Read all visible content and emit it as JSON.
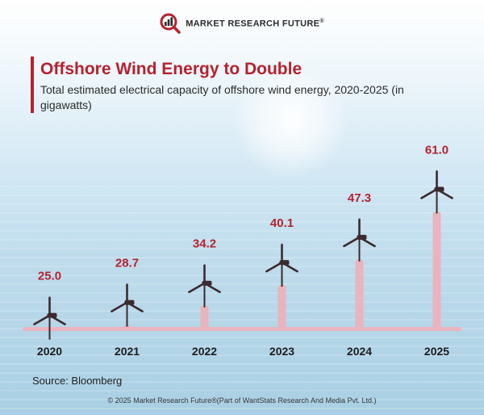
{
  "brand": {
    "name": "MARKET RESEARCH FUTURE",
    "reg": "®"
  },
  "chart_data": {
    "type": "bar",
    "title": "Offshore Wind Energy to Double",
    "subtitle": "Total estimated electrical capacity of offshore wind  energy, 2020-2025 (in gigawatts)",
    "categories": [
      "2020",
      "2021",
      "2022",
      "2023",
      "2024",
      "2025"
    ],
    "values": [
      25.0,
      28.7,
      34.2,
      40.1,
      47.3,
      61.0
    ],
    "value_labels": [
      "25.0",
      "28.7",
      "34.2",
      "40.1",
      "47.3",
      "61.0"
    ],
    "ylabel": "gigawatts",
    "ylim": [
      0,
      65
    ],
    "colors": {
      "bar": "#e9b4bd",
      "value_label": "#b5222e",
      "turbine": "#3b2a2e"
    }
  },
  "source": "Source: Bloomberg",
  "copyright": "© 2025 Market Research Future®(Part of WantStats Research And Media Pvt. Ltd.)"
}
